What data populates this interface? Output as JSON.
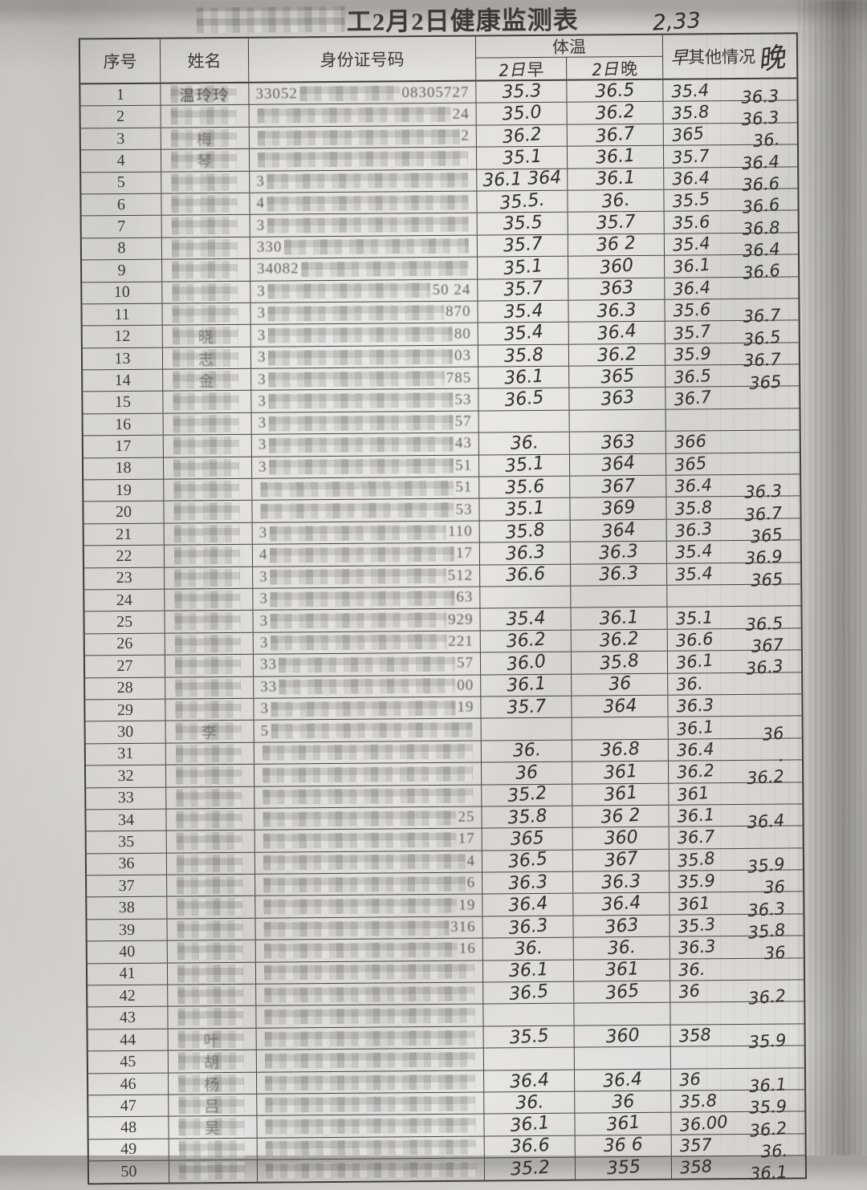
{
  "title": {
    "visible_text": "工2月2日健康监测表",
    "blurred_prefix": "mosaic",
    "handwritten_note": "2,33"
  },
  "table": {
    "headers": {
      "no": "序号",
      "name": "姓名",
      "id": "身份证号码",
      "temp_group": "体温",
      "morning_hw": "2日",
      "morning": "早",
      "evening_hw": "2日",
      "evening": "晚",
      "other_hw_before": "早",
      "other": "其他情况",
      "other_hw_after": "晚"
    },
    "rows": [
      {
        "no": "1",
        "name": "温玲玲",
        "id_pre": "33052",
        "id_suf": "08305727",
        "m": "35.3",
        "e": "36.5",
        "o1": "35.4",
        "o2": "36.3"
      },
      {
        "no": "2",
        "name": "",
        "id_pre": "",
        "id_suf": "24",
        "m": "35.0",
        "e": "36.2",
        "o1": "35.8",
        "o2": "36.3"
      },
      {
        "no": "3",
        "name": "梅",
        "id_pre": "",
        "id_suf": "2",
        "m": "36.2",
        "e": "36.7",
        "o1": "365",
        "o2": "36."
      },
      {
        "no": "4",
        "name": "琴",
        "id_pre": "",
        "id_suf": "",
        "m": "35.1",
        "e": "36.1",
        "o1": "35.7",
        "o2": "36.4"
      },
      {
        "no": "5",
        "name": "",
        "id_pre": "3",
        "id_suf": "",
        "m": "36.1 364",
        "e": "36.1",
        "o1": "36.4",
        "o2": "36.6"
      },
      {
        "no": "6",
        "name": "",
        "id_pre": "4",
        "id_suf": "",
        "m": "35.5.",
        "e": "36.",
        "o1": "35.5",
        "o2": "36.6"
      },
      {
        "no": "7",
        "name": "",
        "id_pre": "3",
        "id_suf": "",
        "m": "35.5",
        "e": "35.7",
        "o1": "35.6",
        "o2": "36.8"
      },
      {
        "no": "8",
        "name": "",
        "id_pre": "330",
        "id_suf": "",
        "m": "35.7",
        "e": "36 2",
        "o1": "35.4",
        "o2": "36.4"
      },
      {
        "no": "9",
        "name": "",
        "id_pre": "34082",
        "id_suf": "",
        "m": "35.1",
        "e": "360",
        "o1": "36.1",
        "o2": "36.6"
      },
      {
        "no": "10",
        "name": "",
        "id_pre": "3",
        "id_suf": "50  24",
        "m": "35.7",
        "e": "363",
        "o1": "36.4",
        "o2": ""
      },
      {
        "no": "11",
        "name": "",
        "id_pre": "3",
        "id_suf": "870",
        "m": "35.4",
        "e": "36.3",
        "o1": "35.6",
        "o2": "36.7"
      },
      {
        "no": "12",
        "name": "晓",
        "id_pre": "3",
        "id_suf": "80",
        "m": "35.4",
        "e": "36.4",
        "o1": "35.7",
        "o2": "36.5"
      },
      {
        "no": "13",
        "name": "志",
        "id_pre": "3",
        "id_suf": "03",
        "m": "35.8",
        "e": "36.2",
        "o1": "35.9",
        "o2": "36.7"
      },
      {
        "no": "14",
        "name": "金",
        "id_pre": "3",
        "id_suf": "785",
        "m": "36.1",
        "e": "365",
        "o1": "36.5",
        "o2": "365"
      },
      {
        "no": "15",
        "name": "",
        "id_pre": "3",
        "id_suf": "53",
        "m": "36.5",
        "e": "363",
        "o1": "36.7",
        "o2": ""
      },
      {
        "no": "16",
        "name": "",
        "id_pre": "3",
        "id_suf": "57",
        "m": "",
        "e": "",
        "o1": "",
        "o2": ""
      },
      {
        "no": "17",
        "name": "",
        "id_pre": "3",
        "id_suf": "43",
        "m": "36.",
        "e": "363",
        "o1": "366",
        "o2": ""
      },
      {
        "no": "18",
        "name": "",
        "id_pre": "3",
        "id_suf": "51",
        "m": "35.1",
        "e": "364",
        "o1": "365",
        "o2": ""
      },
      {
        "no": "19",
        "name": "",
        "id_pre": "",
        "id_suf": "51",
        "m": "35.6",
        "e": "367",
        "o1": "36.4",
        "o2": "36.3"
      },
      {
        "no": "20",
        "name": "",
        "id_pre": "",
        "id_suf": "53",
        "m": "35.1",
        "e": "369",
        "o1": "35.8",
        "o2": "36.7"
      },
      {
        "no": "21",
        "name": "",
        "id_pre": "3",
        "id_suf": "110",
        "m": "35.8",
        "e": "364",
        "o1": "36.3",
        "o2": "365"
      },
      {
        "no": "22",
        "name": "",
        "id_pre": "4",
        "id_suf": "17",
        "m": "36.3",
        "e": "36.3",
        "o1": "35.4",
        "o2": "36.9"
      },
      {
        "no": "23",
        "name": "",
        "id_pre": "3",
        "id_suf": "512",
        "m": "36.6",
        "e": "36.3",
        "o1": "35.4",
        "o2": "365"
      },
      {
        "no": "24",
        "name": "",
        "id_pre": "3",
        "id_suf": "63",
        "m": "",
        "e": "",
        "o1": "",
        "o2": ""
      },
      {
        "no": "25",
        "name": "",
        "id_pre": "3",
        "id_suf": "929",
        "m": "35.4",
        "e": "36.1",
        "o1": "35.1",
        "o2": "36.5"
      },
      {
        "no": "26",
        "name": "",
        "id_pre": "3",
        "id_suf": "221",
        "m": "36.2",
        "e": "36.2",
        "o1": "36.6",
        "o2": "367"
      },
      {
        "no": "27",
        "name": "",
        "id_pre": "33",
        "id_suf": "57",
        "m": "36.0",
        "e": "35.8",
        "o1": "36.1",
        "o2": "36.3"
      },
      {
        "no": "28",
        "name": "",
        "id_pre": "33",
        "id_suf": "00",
        "m": "36.1",
        "e": "36",
        "o1": "36.",
        "o2": ""
      },
      {
        "no": "29",
        "name": "",
        "id_pre": "3",
        "id_suf": "19",
        "m": "35.7",
        "e": "364",
        "o1": "36.3",
        "o2": ""
      },
      {
        "no": "30",
        "name": "李",
        "id_pre": "5",
        "id_suf": "",
        "m": "",
        "e": "",
        "o1": "36.1",
        "o2": "36"
      },
      {
        "no": "31",
        "name": "",
        "id_pre": "",
        "id_suf": "",
        "m": "36.",
        "e": "36.8",
        "o1": "36.4",
        "o2": "."
      },
      {
        "no": "32",
        "name": "",
        "id_pre": "",
        "id_suf": "",
        "m": "36",
        "e": "361",
        "o1": "36.2",
        "o2": "36.2"
      },
      {
        "no": "33",
        "name": "",
        "id_pre": "",
        "id_suf": "",
        "m": "35.2",
        "e": "361",
        "o1": "361",
        "o2": ""
      },
      {
        "no": "34",
        "name": "",
        "id_pre": "",
        "id_suf": "25",
        "m": "35.8",
        "e": "36 2",
        "o1": "36.1",
        "o2": "36.4"
      },
      {
        "no": "35",
        "name": "",
        "id_pre": "",
        "id_suf": "17",
        "m": "365",
        "e": "360",
        "o1": "36.7",
        "o2": ""
      },
      {
        "no": "36",
        "name": "",
        "id_pre": "",
        "id_suf": "4",
        "m": "36.5",
        "e": "367",
        "o1": "35.8",
        "o2": "35.9"
      },
      {
        "no": "37",
        "name": "",
        "id_pre": "",
        "id_suf": "6",
        "m": "36.3",
        "e": "36.3",
        "o1": "35.9",
        "o2": "36"
      },
      {
        "no": "38",
        "name": "",
        "id_pre": "",
        "id_suf": "19",
        "m": "36.4",
        "e": "36.4",
        "o1": "361",
        "o2": "36.3"
      },
      {
        "no": "39",
        "name": "",
        "id_pre": "",
        "id_suf": "316",
        "m": "36.3",
        "e": "363",
        "o1": "35.3",
        "o2": "35.8"
      },
      {
        "no": "40",
        "name": "",
        "id_pre": "",
        "id_suf": "16",
        "m": "36.",
        "e": "36.",
        "o1": "36.3",
        "o2": "36"
      },
      {
        "no": "41",
        "name": "",
        "id_pre": "",
        "id_suf": "",
        "m": "36.1",
        "e": "361",
        "o1": "36.",
        "o2": ""
      },
      {
        "no": "42",
        "name": "",
        "id_pre": "",
        "id_suf": "",
        "m": "36.5",
        "e": "365",
        "o1": "36",
        "o2": "36.2"
      },
      {
        "no": "43",
        "name": "",
        "id_pre": "",
        "id_suf": "",
        "m": "",
        "e": "",
        "o1": "",
        "o2": ""
      },
      {
        "no": "44",
        "name": "叶",
        "id_pre": "",
        "id_suf": "",
        "m": "35.5",
        "e": "360",
        "o1": "358",
        "o2": "35.9"
      },
      {
        "no": "45",
        "name": "胡",
        "id_pre": "",
        "id_suf": "",
        "m": "",
        "e": "",
        "o1": "",
        "o2": ""
      },
      {
        "no": "46",
        "name": "杨",
        "id_pre": "",
        "id_suf": "",
        "m": "36.4",
        "e": "36.4",
        "o1": "36",
        "o2": "36.1"
      },
      {
        "no": "47",
        "name": "吕",
        "id_pre": "",
        "id_suf": "",
        "m": "36.",
        "e": "36",
        "o1": "35.8",
        "o2": "35.9"
      },
      {
        "no": "48",
        "name": "吴",
        "id_pre": "",
        "id_suf": "",
        "m": "36.1",
        "e": "361",
        "o1": "36.00",
        "o2": "36.2"
      },
      {
        "no": "49",
        "name": "",
        "id_pre": "",
        "id_suf": "",
        "m": "36.6",
        "e": "36 6",
        "o1": "357",
        "o2": "36."
      },
      {
        "no": "50",
        "name": "",
        "id_pre": "",
        "id_suf": "",
        "m": "35.2",
        "e": "355",
        "o1": "358",
        "o2": "36.1"
      }
    ]
  },
  "colors": {
    "paper": "#dedbd7",
    "line": "#403d3a",
    "printed_ink": "#3b3835",
    "handwriting_ink": "#2e2b28",
    "mosaic_gray": "#b5b2ae"
  }
}
